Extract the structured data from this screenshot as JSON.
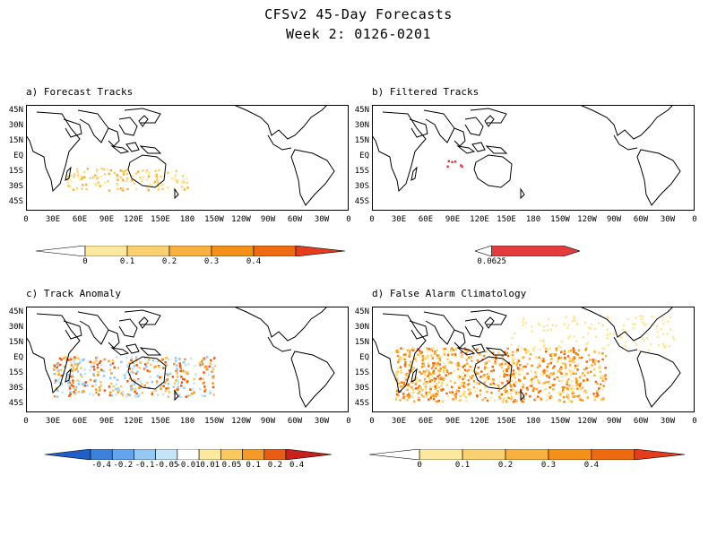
{
  "title_line1": "CFSv2 45-Day Forecasts",
  "title_line2": "Week 2: 0126-0201",
  "lat_labels": [
    "45N",
    "30N",
    "15N",
    "EQ",
    "15S",
    "30S",
    "45S"
  ],
  "lon_labels": [
    "0",
    "30E",
    "60E",
    "90E",
    "120E",
    "150E",
    "180",
    "150W",
    "120W",
    "90W",
    "60W",
    "30W",
    "0"
  ],
  "panels": [
    {
      "id": "a",
      "label": "a) Forecast Tracks"
    },
    {
      "id": "b",
      "label": "b) Filtered Tracks"
    },
    {
      "id": "c",
      "label": "c) Track Anomaly"
    },
    {
      "id": "d",
      "label": "d) False Alarm Climatology"
    }
  ],
  "colorbars": {
    "a": {
      "labels": [
        "0",
        "0.1",
        "0.2",
        "0.3",
        "0.4"
      ],
      "colors": [
        "#ffffff",
        "#fde8a0",
        "#fbd070",
        "#f8b040",
        "#f49018",
        "#ee6a10",
        "#e43c1c"
      ]
    },
    "b": {
      "labels": [
        "0.0625"
      ],
      "colors": [
        "#ffffff",
        "#e43c3c"
      ]
    },
    "c": {
      "labels": [
        "-0.4",
        "-0.2",
        "-0.1",
        "-0.05",
        "-0.01",
        "0.01",
        "0.05",
        "0.1",
        "0.2",
        "0.4"
      ],
      "colors": [
        "#1e5fc8",
        "#3c82dc",
        "#64a4ec",
        "#96c8f4",
        "#c4e4f8",
        "#ffffff",
        "#fde8a0",
        "#fbc860",
        "#f59a28",
        "#e85c14",
        "#c8201c"
      ]
    },
    "d": {
      "labels": [
        "0",
        "0.1",
        "0.2",
        "0.3",
        "0.4"
      ],
      "colors": [
        "#ffffff",
        "#fde8a0",
        "#fbd070",
        "#f8b040",
        "#f49018",
        "#ee6a10",
        "#e43c1c"
      ]
    }
  },
  "colors": {
    "map_border": "#000000",
    "coast": "#000000"
  }
}
